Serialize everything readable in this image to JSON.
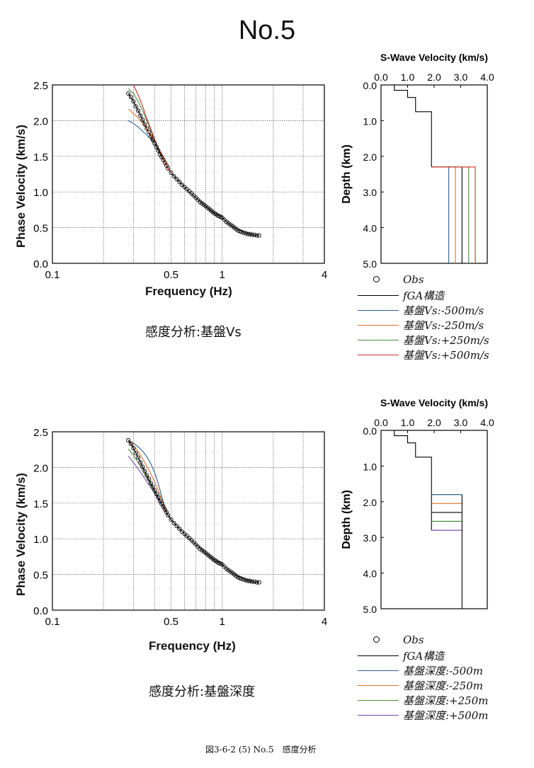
{
  "page": {
    "title": "No.5",
    "figure_caption": "図3-6-2 (5) No.5　感度分析"
  },
  "chart_data": [
    {
      "type": "line",
      "panel": "top-dispersion",
      "xlabel": "Frequency (Hz)",
      "ylabel": "Phase Velocity (km/s)",
      "xscale": "log",
      "xlim": [
        0.1,
        4
      ],
      "ylim": [
        0.0,
        2.5
      ],
      "xticks": [
        "0.1",
        "0.5",
        "1",
        "4"
      ],
      "yticks": [
        "0.0",
        "0.5",
        "1.0",
        "1.5",
        "2.0",
        "2.5"
      ],
      "grid": true,
      "caption": "感度分析:基盤Vs",
      "observed": {
        "x": [
          0.28,
          0.29,
          0.3,
          0.31,
          0.32,
          0.33,
          0.34,
          0.35,
          0.36,
          0.37,
          0.38,
          0.39,
          0.4,
          0.41,
          0.42,
          0.43,
          0.44,
          0.45,
          0.46,
          0.47,
          0.48,
          0.5,
          0.52,
          0.54,
          0.56,
          0.58,
          0.6,
          0.62,
          0.64,
          0.66,
          0.68,
          0.7,
          0.72,
          0.74,
          0.76,
          0.78,
          0.8,
          0.82,
          0.84,
          0.86,
          0.88,
          0.9,
          0.92,
          0.94,
          0.96,
          0.98,
          1.0,
          1.03,
          1.06,
          1.09,
          1.12,
          1.15,
          1.18,
          1.21,
          1.24,
          1.27,
          1.3,
          1.34,
          1.38,
          1.42,
          1.46,
          1.5,
          1.55,
          1.6,
          1.65
        ],
        "y": [
          2.38,
          2.33,
          2.27,
          2.2,
          2.14,
          2.07,
          2.01,
          1.95,
          1.89,
          1.84,
          1.78,
          1.73,
          1.68,
          1.63,
          1.58,
          1.53,
          1.49,
          1.45,
          1.41,
          1.37,
          1.33,
          1.27,
          1.22,
          1.18,
          1.14,
          1.1,
          1.07,
          1.04,
          1.01,
          0.98,
          0.95,
          0.92,
          0.89,
          0.86,
          0.84,
          0.82,
          0.8,
          0.78,
          0.76,
          0.74,
          0.72,
          0.7,
          0.69,
          0.67,
          0.66,
          0.65,
          0.64,
          0.61,
          0.58,
          0.56,
          0.54,
          0.52,
          0.5,
          0.48,
          0.46,
          0.45,
          0.44,
          0.43,
          0.42,
          0.41,
          0.41,
          0.4,
          0.4,
          0.39,
          0.39
        ]
      },
      "series": [
        {
          "name": "fGA構造",
          "color": "#000000",
          "x": [
            0.28,
            0.3,
            0.32,
            0.34,
            0.36,
            0.38,
            0.4,
            0.42,
            0.44,
            0.46,
            0.48,
            0.5,
            0.55,
            0.6,
            0.65,
            0.7,
            0.75,
            0.8,
            0.85,
            0.9,
            0.95,
            1.0,
            1.1,
            1.2,
            1.3,
            1.4,
            1.5,
            1.6,
            1.65
          ],
          "y": [
            2.38,
            2.27,
            2.14,
            2.01,
            1.89,
            1.78,
            1.68,
            1.58,
            1.49,
            1.41,
            1.33,
            1.27,
            1.16,
            1.07,
            0.99,
            0.92,
            0.86,
            0.8,
            0.75,
            0.7,
            0.67,
            0.64,
            0.55,
            0.49,
            0.45,
            0.42,
            0.4,
            0.39,
            0.39
          ]
        },
        {
          "name": "基盤Vs:-500m/s",
          "color": "#2f5f8a",
          "x": [
            0.28,
            0.3,
            0.32,
            0.34,
            0.36,
            0.38,
            0.4,
            0.42,
            0.44,
            0.46,
            0.48,
            0.5
          ],
          "y": [
            2.0,
            1.96,
            1.91,
            1.85,
            1.8,
            1.74,
            1.68,
            1.6,
            1.52,
            1.43,
            1.34,
            1.27
          ]
        },
        {
          "name": "基盤Vs:-250m/s",
          "color": "#e07030",
          "x": [
            0.28,
            0.3,
            0.32,
            0.34,
            0.36,
            0.38,
            0.4,
            0.42,
            0.44,
            0.46,
            0.48,
            0.5
          ],
          "y": [
            2.16,
            2.1,
            2.04,
            1.96,
            1.88,
            1.8,
            1.71,
            1.62,
            1.53,
            1.43,
            1.34,
            1.27
          ]
        },
        {
          "name": "基盤Vs:+250m/s",
          "color": "#4a8a3a",
          "x": [
            0.28,
            0.3,
            0.32,
            0.34,
            0.36,
            0.38,
            0.4,
            0.42,
            0.44,
            0.46,
            0.48,
            0.5
          ],
          "y": [
            2.45,
            2.38,
            2.27,
            2.14,
            2.0,
            1.86,
            1.73,
            1.61,
            1.51,
            1.41,
            1.33,
            1.27
          ]
        },
        {
          "name": "基盤Vs:+500m/s",
          "color": "#d0302a",
          "x": [
            0.3,
            0.32,
            0.34,
            0.36,
            0.38,
            0.4,
            0.42,
            0.44,
            0.46,
            0.48,
            0.5
          ],
          "y": [
            2.5,
            2.36,
            2.2,
            2.03,
            1.88,
            1.74,
            1.62,
            1.51,
            1.41,
            1.33,
            1.27
          ]
        }
      ]
    },
    {
      "type": "line",
      "panel": "top-profile",
      "title": "S-Wave Velocity (km/s)",
      "ylabel": "Depth (km)",
      "xlim": [
        0.0,
        4.0
      ],
      "ylim": [
        0.0,
        5.0
      ],
      "xticks": [
        "0.0",
        "1.0",
        "2.0",
        "3.0",
        "4.0"
      ],
      "yticks": [
        "0.0",
        "1.0",
        "2.0",
        "3.0",
        "4.0",
        "5.0"
      ],
      "base_profile": {
        "vs": [
          0.5,
          1.0,
          1.3,
          1.9
        ],
        "depth_bottom": [
          0.15,
          0.35,
          0.75,
          2.3
        ]
      },
      "bedrock_top_km": 2.3,
      "bedrock_vs": [
        {
          "name": "基盤Vs:-500m/s",
          "vs": 2.55,
          "color": "#2f5f8a"
        },
        {
          "name": "基盤Vs:-250m/s",
          "vs": 2.8,
          "color": "#e07030"
        },
        {
          "name": "fGA構造",
          "vs": 3.05,
          "color": "#000000"
        },
        {
          "name": "基盤Vs:+250m/s",
          "vs": 3.3,
          "color": "#4a8a3a"
        },
        {
          "name": "基盤Vs:+500m/s",
          "vs": 3.55,
          "color": "#d0302a"
        }
      ]
    },
    {
      "type": "line",
      "panel": "bottom-dispersion",
      "xlabel": "Frequency (Hz)",
      "ylabel": "Phase Velocity (km/s)",
      "xscale": "log",
      "xlim": [
        0.1,
        4
      ],
      "ylim": [
        0.0,
        2.5
      ],
      "xticks": [
        "0.1",
        "0.5",
        "1",
        "4"
      ],
      "yticks": [
        "0.0",
        "0.5",
        "1.0",
        "1.5",
        "2.0",
        "2.5"
      ],
      "grid": true,
      "caption": "感度分析:基盤深度",
      "series": [
        {
          "name": "基盤深度:-500m",
          "color": "#2f5f8a",
          "x": [
            0.28,
            0.3,
            0.32,
            0.34,
            0.36,
            0.38,
            0.4,
            0.42,
            0.44,
            0.46,
            0.48,
            0.5
          ],
          "y": [
            2.38,
            2.34,
            2.29,
            2.23,
            2.15,
            2.05,
            1.93,
            1.78,
            1.6,
            1.44,
            1.33,
            1.27
          ]
        },
        {
          "name": "基盤深度:-250m",
          "color": "#e07030",
          "x": [
            0.28,
            0.3,
            0.32,
            0.34,
            0.36,
            0.38,
            0.4,
            0.42,
            0.44,
            0.46,
            0.48,
            0.5
          ],
          "y": [
            2.38,
            2.31,
            2.22,
            2.12,
            2.02,
            1.91,
            1.8,
            1.68,
            1.55,
            1.43,
            1.33,
            1.27
          ]
        },
        {
          "name": "基盤深度:+250m",
          "color": "#4a8a3a",
          "x": [
            0.28,
            0.3,
            0.32,
            0.34,
            0.36,
            0.38,
            0.4,
            0.42,
            0.44,
            0.46,
            0.48,
            0.5
          ],
          "y": [
            2.26,
            2.17,
            2.07,
            1.96,
            1.86,
            1.76,
            1.67,
            1.58,
            1.49,
            1.41,
            1.33,
            1.27
          ]
        },
        {
          "name": "基盤深度:+500m",
          "color": "#7a4ab0",
          "x": [
            0.28,
            0.3,
            0.32,
            0.34,
            0.36,
            0.38,
            0.4,
            0.42,
            0.44,
            0.46,
            0.48,
            0.5
          ],
          "y": [
            2.16,
            2.07,
            1.98,
            1.89,
            1.8,
            1.72,
            1.64,
            1.56,
            1.48,
            1.4,
            1.33,
            1.27
          ]
        }
      ]
    },
    {
      "type": "line",
      "panel": "bottom-profile",
      "title": "S-Wave Velocity (km/s)",
      "ylabel": "Depth (km)",
      "xlim": [
        0.0,
        4.0
      ],
      "ylim": [
        0.0,
        5.0
      ],
      "xticks": [
        "0.0",
        "1.0",
        "2.0",
        "3.0",
        "4.0"
      ],
      "yticks": [
        "0.0",
        "1.0",
        "2.0",
        "3.0",
        "4.0",
        "5.0"
      ],
      "bedrock_vs_kmps": 3.05,
      "bedrock_depths": [
        {
          "name": "基盤深度:-500m",
          "depth": 1.8,
          "color": "#2f5f8a"
        },
        {
          "name": "基盤深度:-250m",
          "depth": 2.05,
          "color": "#e07030"
        },
        {
          "name": "fGA構造",
          "depth": 2.3,
          "color": "#000000"
        },
        {
          "name": "基盤深度:+250m",
          "depth": 2.55,
          "color": "#4a8a3a"
        },
        {
          "name": "基盤深度:+500m",
          "depth": 2.8,
          "color": "#7a4ab0"
        }
      ]
    }
  ],
  "legend_top": [
    {
      "label": "Obs",
      "kind": "marker",
      "color": "#000000"
    },
    {
      "label": "fGA構造",
      "kind": "line",
      "color": "#000000"
    },
    {
      "label": "基盤Vs:-500m/s",
      "kind": "line",
      "color": "#2f5f8a"
    },
    {
      "label": "基盤Vs:-250m/s",
      "kind": "line",
      "color": "#e07030"
    },
    {
      "label": "基盤Vs:+250m/s",
      "kind": "line",
      "color": "#4a8a3a"
    },
    {
      "label": "基盤Vs:+500m/s",
      "kind": "line",
      "color": "#d0302a"
    }
  ],
  "legend_bottom": [
    {
      "label": "Obs",
      "kind": "marker",
      "color": "#000000"
    },
    {
      "label": "fGA構造",
      "kind": "line",
      "color": "#000000"
    },
    {
      "label": "基盤深度:-500m",
      "kind": "line",
      "color": "#2f5f8a"
    },
    {
      "label": "基盤深度:-250m",
      "kind": "line",
      "color": "#e07030"
    },
    {
      "label": "基盤深度:+250m",
      "kind": "line",
      "color": "#4a8a3a"
    },
    {
      "label": "基盤深度:+500m",
      "kind": "line",
      "color": "#7a4ab0"
    }
  ]
}
